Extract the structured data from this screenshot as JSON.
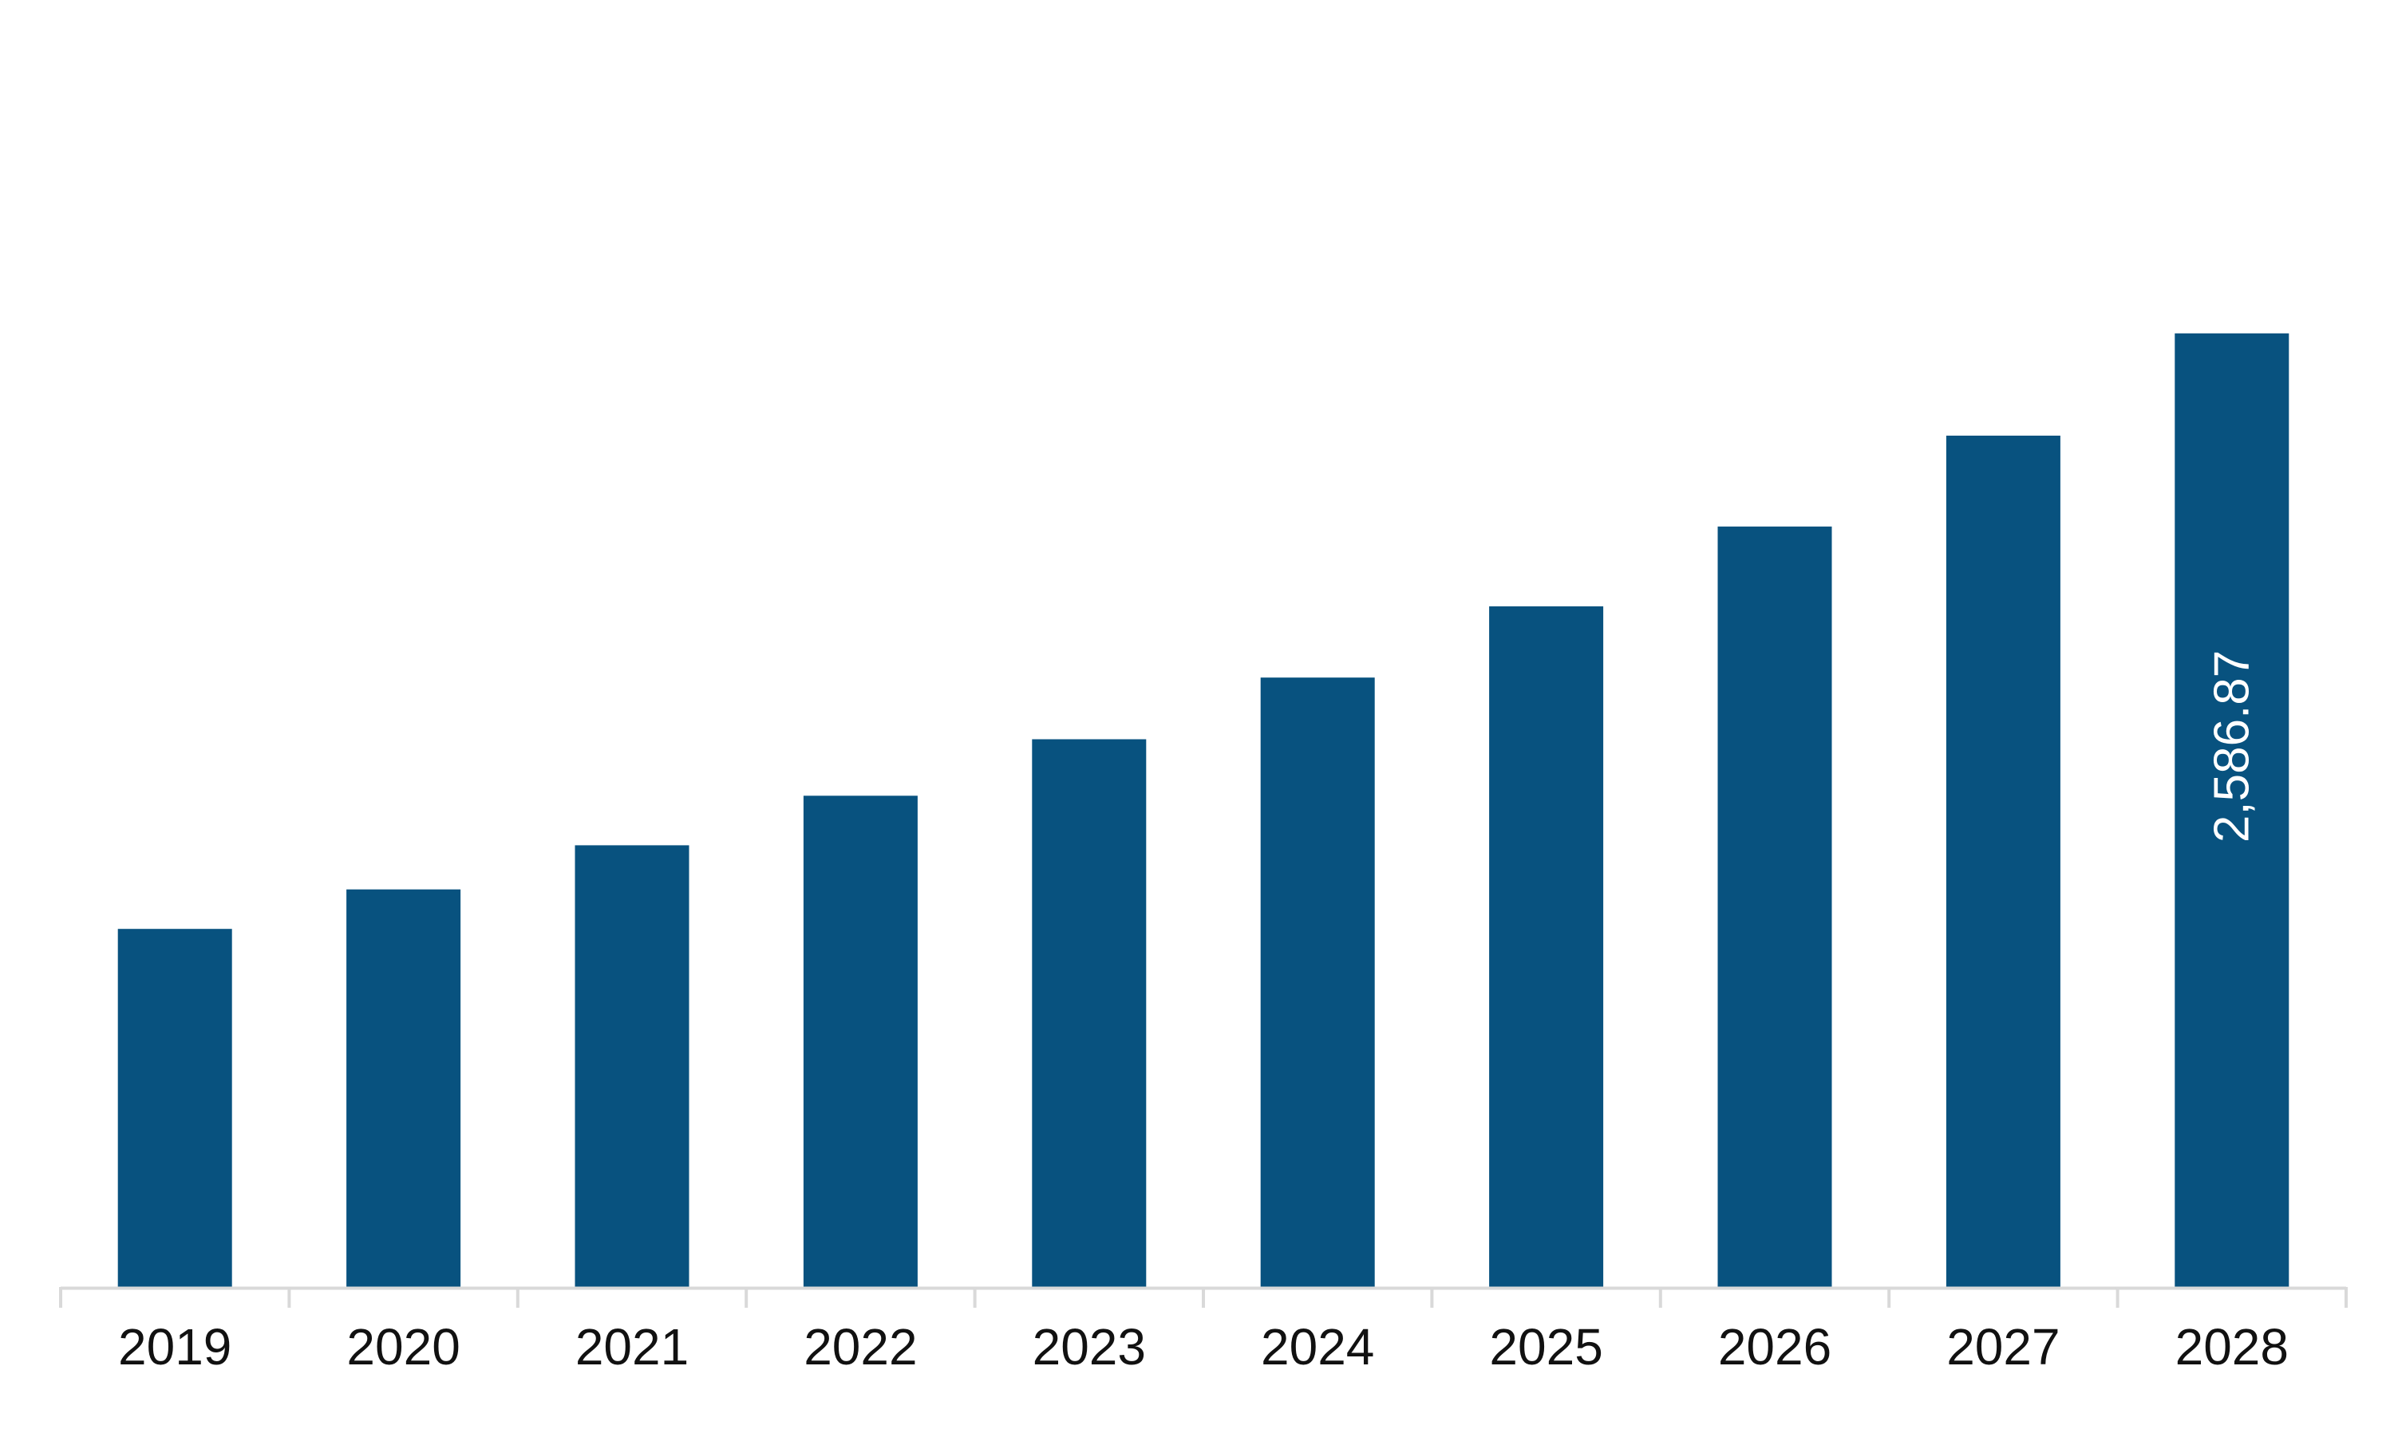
{
  "chart_data": {
    "type": "bar",
    "categories": [
      "2019",
      "2020",
      "2021",
      "2022",
      "2023",
      "2024",
      "2025",
      "2026",
      "2027",
      "2028"
    ],
    "values": [
      971.5,
      1078.6,
      1198.2,
      1332.7,
      1485.9,
      1653.3,
      1846.4,
      2063.0,
      2309.4,
      2586.87
    ],
    "data_labels": [
      "",
      "",
      "",
      "",
      "",
      "",
      "",
      "",
      "",
      "2,586.87"
    ],
    "title": "",
    "xlabel": "",
    "ylabel": "",
    "ylim": [
      0,
      3080
    ],
    "grid": false,
    "legend": "none",
    "colors": {
      "bar": "#08527F",
      "axis": "#D9D9D9",
      "tick_text": "#111111",
      "data_label_text": "#ffffff"
    }
  }
}
